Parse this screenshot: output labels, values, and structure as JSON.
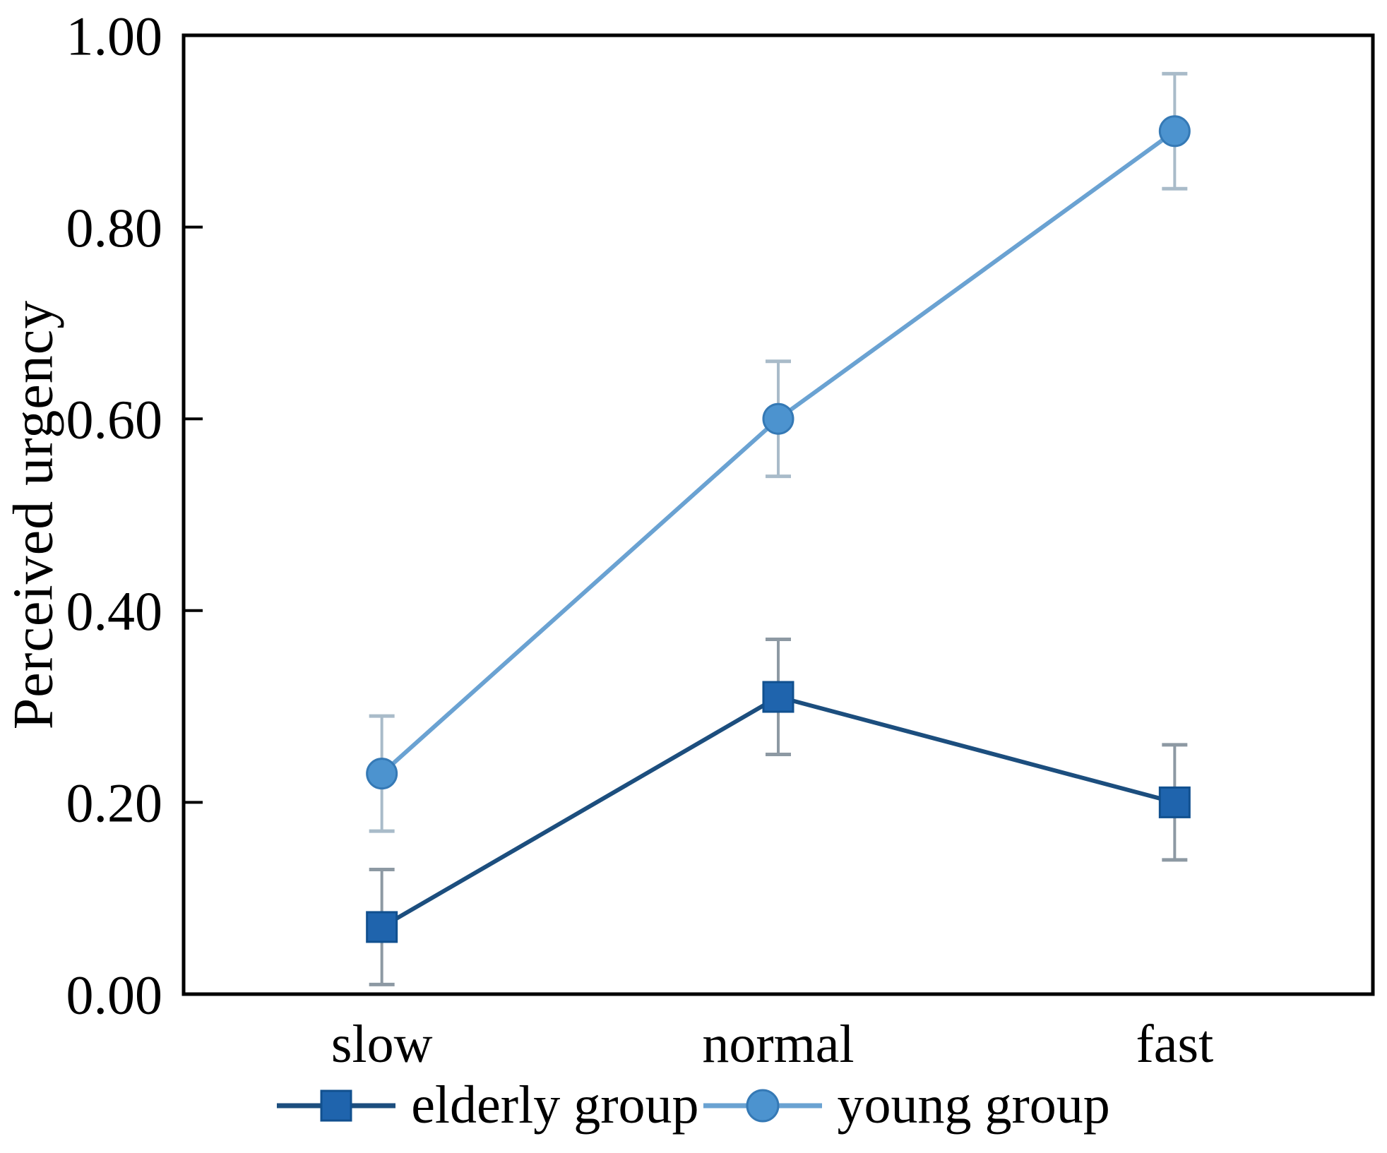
{
  "chart_data": {
    "type": "line",
    "title": "",
    "ylabel": "Perceived urgency",
    "xlabel": "",
    "categories": [
      "slow",
      "normal",
      "fast"
    ],
    "ylim": [
      0.0,
      1.0
    ],
    "yticks": [
      0.0,
      0.2,
      0.4,
      0.6,
      0.8,
      1.0
    ],
    "ytick_labels": [
      "0.00",
      "0.20",
      "0.40",
      "0.60",
      "0.80",
      "1.00"
    ],
    "grid": false,
    "legend_position": "bottom-center",
    "series": [
      {
        "name": "elderly group",
        "marker": "square",
        "values": [
          0.07,
          0.31,
          0.2
        ],
        "errors": [
          0.06,
          0.06,
          0.06
        ],
        "marker_color": "#1f64ad",
        "marker_edge_color": "#11508f",
        "line_color": "#1c4e7e",
        "error_color": "#8d99a3"
      },
      {
        "name": "young group",
        "marker": "circle",
        "values": [
          0.23,
          0.6,
          0.9
        ],
        "errors": [
          0.06,
          0.06,
          0.06
        ],
        "marker_color": "#4c93cf",
        "marker_edge_color": "#3579b5",
        "line_color": "#6aa2d2",
        "error_color": "#a9bbc9"
      }
    ],
    "axis_color": "#000000",
    "text_color": "#000000",
    "background": "#ffffff"
  }
}
